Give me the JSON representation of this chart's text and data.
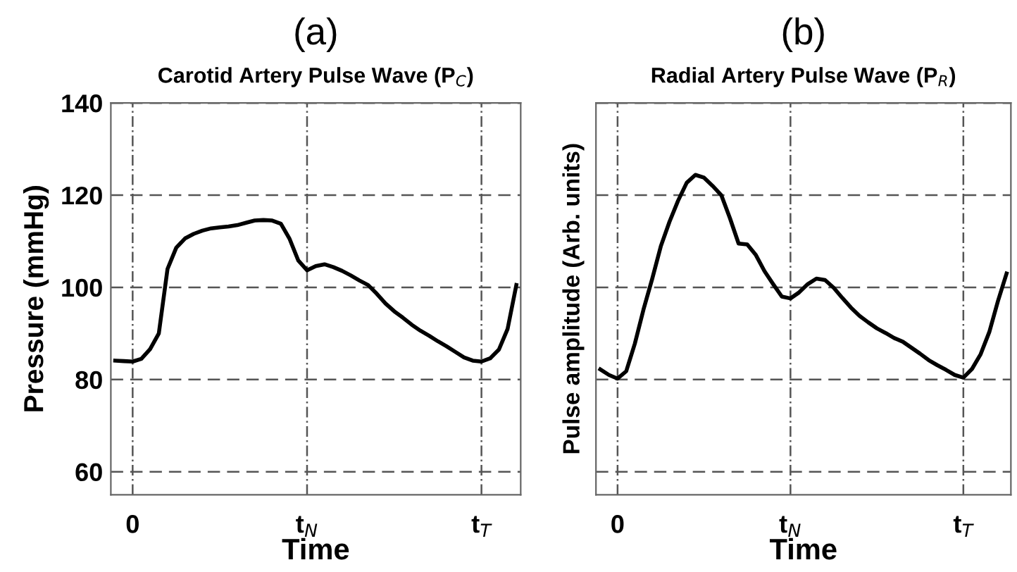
{
  "chart_data": [
    {
      "type": "line",
      "title": "(a)",
      "subtitle": "Carotid Artery Pulse Wave (P$_{C}$)",
      "xlabel": "Time",
      "ylabel": "Pressure (mmHg)",
      "categories": [
        null,
        null,
        "0",
        null,
        null,
        null,
        null,
        null,
        null,
        null,
        null,
        null,
        null,
        null,
        null,
        null,
        null,
        null,
        null,
        null,
        null,
        null,
        "t$_{N}$",
        null,
        null,
        null,
        null,
        null,
        null,
        null,
        null,
        null,
        null,
        null,
        null,
        null,
        null,
        null,
        null,
        null,
        null,
        null,
        "t$_{T}$",
        null,
        null,
        null,
        null
      ],
      "series": [
        {
          "color": "#000000",
          "values": [
            84.1,
            84.0,
            83.9,
            84.5,
            86.6,
            90.0,
            104.0,
            108.6,
            110.6,
            111.6,
            112.3,
            112.8,
            113.0,
            113.2,
            113.5,
            114.0,
            114.5,
            114.6,
            114.5,
            113.8,
            110.5,
            105.8,
            103.7,
            104.6,
            105.0,
            104.4,
            103.6,
            102.6,
            101.5,
            100.5,
            98.6,
            96.5,
            94.8,
            93.4,
            91.9,
            90.6,
            89.5,
            88.3,
            87.2,
            86.0,
            84.8,
            84.1,
            83.9,
            84.6,
            86.5,
            91.0,
            100.5
          ]
        }
      ],
      "ylim": [
        55,
        140
      ],
      "yticks": [
        60,
        80,
        100,
        120,
        140
      ],
      "grid": true,
      "line_style": "solid",
      "marker": "none"
    },
    {
      "type": "line",
      "title": "(b)",
      "subtitle": "Radial Artery Pulse Wave (P$_{R}$)",
      "xlabel": "Time",
      "ylabel": "Pulse amplitude (Arb. units)",
      "categories": [
        null,
        null,
        "0",
        null,
        null,
        null,
        null,
        null,
        null,
        null,
        null,
        null,
        null,
        null,
        null,
        null,
        null,
        null,
        null,
        null,
        null,
        null,
        "t$_{N}$",
        null,
        null,
        null,
        null,
        null,
        null,
        null,
        null,
        null,
        null,
        null,
        null,
        null,
        null,
        null,
        null,
        null,
        null,
        null,
        "t$_{T}$",
        null,
        null,
        null,
        null,
        null
      ],
      "series": [
        {
          "color": "#000000",
          "values": [
            82.2,
            81.0,
            80.2,
            81.8,
            87.8,
            95.2,
            101.8,
            108.9,
            114.2,
            118.8,
            122.7,
            124.4,
            123.8,
            122.0,
            120.0,
            115.0,
            109.5,
            109.3,
            107.0,
            103.5,
            100.7,
            98.0,
            97.6,
            98.9,
            100.7,
            101.9,
            101.6,
            99.9,
            97.7,
            95.6,
            93.8,
            92.4,
            91.1,
            90.1,
            89.0,
            88.2,
            86.9,
            85.6,
            84.2,
            83.1,
            82.1,
            81.0,
            80.4,
            82.3,
            85.5,
            90.3,
            97.0,
            103.0
          ]
        }
      ],
      "ylim": [
        55,
        140
      ],
      "yticks": [
        60,
        80,
        100,
        120,
        140
      ],
      "tick_labels": "x",
      "grid": true,
      "line_style": "solid",
      "marker": "none"
    }
  ]
}
